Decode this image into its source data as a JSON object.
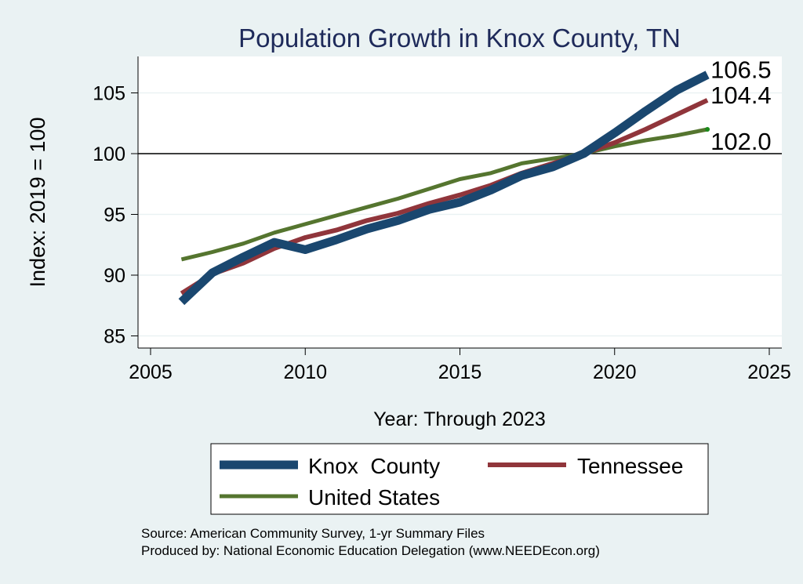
{
  "chart_data": {
    "type": "line",
    "title": "Population Growth in Knox County, TN",
    "xlabel": "Year: Through 2023",
    "ylabel": "Index: 2019 = 100",
    "xlim": [
      2005,
      2025
    ],
    "ylim": [
      84,
      108
    ],
    "xticks": [
      2005,
      2010,
      2015,
      2020,
      2025
    ],
    "yticks": [
      85,
      90,
      95,
      100,
      105
    ],
    "reference_line": 100,
    "grid": true,
    "legend_position": "bottom",
    "x": [
      2006,
      2007,
      2008,
      2009,
      2010,
      2011,
      2012,
      2013,
      2014,
      2015,
      2016,
      2017,
      2018,
      2019,
      2020,
      2021,
      2022,
      2023
    ],
    "series": [
      {
        "name": "Knox  County",
        "color": "#1a476f",
        "values": [
          87.8,
          90.2,
          91.5,
          92.7,
          92.1,
          92.9,
          93.8,
          94.5,
          95.4,
          96.0,
          97.0,
          98.2,
          98.9,
          100.0,
          101.7,
          103.5,
          105.2,
          106.5
        ],
        "end_label": "106.5"
      },
      {
        "name": "Tennessee",
        "color": "#90353b",
        "values": [
          88.5,
          90.1,
          91.0,
          92.2,
          93.1,
          93.7,
          94.5,
          95.1,
          95.9,
          96.6,
          97.4,
          98.4,
          99.2,
          100.0,
          100.9,
          102.0,
          103.2,
          104.4
        ],
        "end_label": "104.4"
      },
      {
        "name": "United States",
        "color": "#55752f",
        "values": [
          91.3,
          91.9,
          92.6,
          93.5,
          94.2,
          94.9,
          95.6,
          96.3,
          97.1,
          97.9,
          98.4,
          99.2,
          99.6,
          100.0,
          100.6,
          101.1,
          101.5,
          102.0
        ],
        "end_label": "102.0"
      }
    ]
  },
  "footer": {
    "source": "Source: American Community Survey, 1-yr Summary Files",
    "produced_by": "Produced by: National Economic Education Delegation (www.NEEDEcon.org)"
  }
}
